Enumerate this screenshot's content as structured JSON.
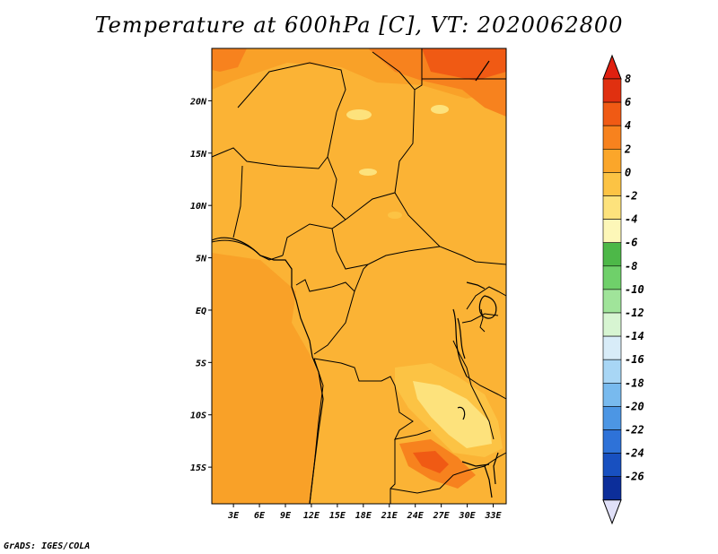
{
  "title": "Temperature at 600hPa [C], VT: 2020062800",
  "footer": "GrADS: IGES/COLA",
  "map": {
    "lat_labels": [
      "20N",
      "15N",
      "10N",
      "5N",
      "EQ",
      "5S",
      "10S",
      "15S"
    ],
    "lon_labels": [
      "3E",
      "6E",
      "9E",
      "12E",
      "15E",
      "18E",
      "21E",
      "24E",
      "27E",
      "30E",
      "33E"
    ],
    "lon_range": [
      0.5,
      34.5
    ],
    "lat_range": [
      -18.5,
      25
    ]
  },
  "colorbar": {
    "labels": [
      "8",
      "6",
      "4",
      "2",
      "0",
      "-2",
      "-4",
      "-6",
      "-8",
      "-10",
      "-12",
      "-14",
      "-16",
      "-18",
      "-20",
      "-22",
      "-24",
      "-26"
    ],
    "colors": [
      "#e03010",
      "#f05a14",
      "#f7821e",
      "#fba62a",
      "#fcc344",
      "#fde27c",
      "#fdf7b8",
      "#4db848",
      "#6fd06a",
      "#a0e49a",
      "#d7f5d2",
      "#d8ecf8",
      "#a8d6f5",
      "#78baee",
      "#4c96e4",
      "#2e72d8",
      "#1850c0",
      "#0c2e9a"
    ],
    "top_color": "#e02010",
    "bottom_color": "#e0e0f8"
  }
}
